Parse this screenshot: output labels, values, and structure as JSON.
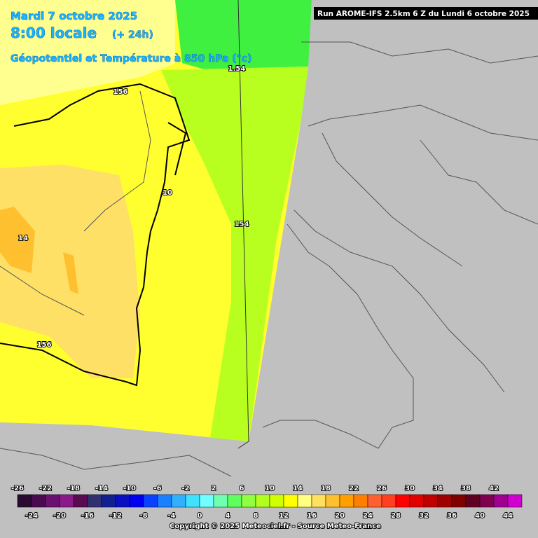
{
  "header": {
    "date": "Mardi 7 octobre 2025",
    "time": "8:00 locale",
    "lead": "(+ 24h)",
    "field": "Géopotentiel et Température à 850 hPa (°c)",
    "run": "Run AROME-IFS 2.5km 6 Z du Lundi 6 octobre 2025"
  },
  "map_labels": [
    "1.54",
    "156",
    "10",
    "14",
    "154",
    "156"
  ],
  "colorbar": {
    "top_labels": [
      -26,
      -22,
      -18,
      -14,
      -10,
      -6,
      -2,
      2,
      6,
      10,
      14,
      18,
      22,
      26,
      30,
      34,
      38,
      42
    ],
    "bottom_labels": [
      -24,
      -20,
      -16,
      -12,
      -8,
      -4,
      0,
      4,
      8,
      12,
      16,
      20,
      24,
      28,
      32,
      36,
      40,
      44
    ],
    "colors": [
      "#2a0a30",
      "#4a0a50",
      "#6a1070",
      "#8a1a8a",
      "#5a0a50",
      "#303070",
      "#102090",
      "#0a10c0",
      "#0000f0",
      "#0a40ff",
      "#1a80ff",
      "#30b0ff",
      "#40e0ff",
      "#70ffff",
      "#70ffb0",
      "#60ff60",
      "#90ff40",
      "#b0ff20",
      "#d0ff00",
      "#ffff00",
      "#ffff80",
      "#ffe060",
      "#ffc030",
      "#ffa000",
      "#ff8000",
      "#ff6030",
      "#ff4020",
      "#ff0000",
      "#e00000",
      "#c00000",
      "#a00000",
      "#800000",
      "#600020",
      "#800050",
      "#a00090",
      "#d000d0",
      "#ff00ff",
      "#ff80ff"
    ]
  },
  "footer": "Copyright © 2025 Meteociel.fr - Source Meteo-France"
}
